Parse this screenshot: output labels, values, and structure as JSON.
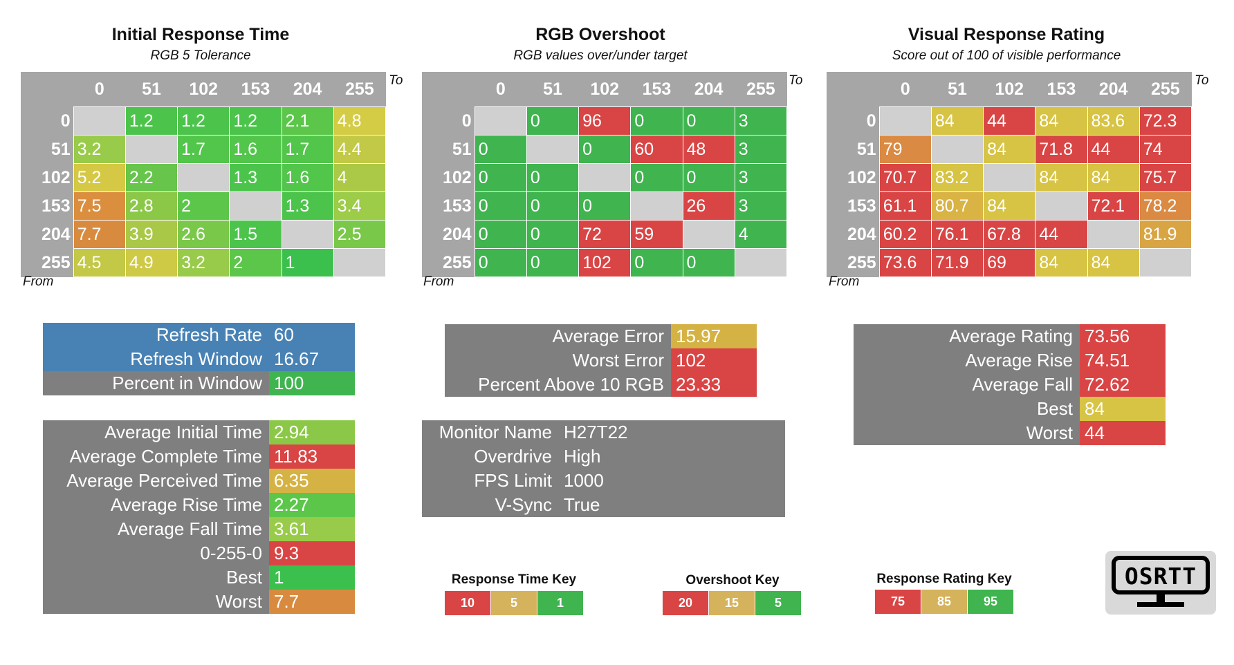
{
  "panels": {
    "initial": {
      "title": "Initial Response Time",
      "subtitle": "RGB 5 Tolerance"
    },
    "overshoot": {
      "title": "RGB Overshoot",
      "subtitle": "RGB values over/under target"
    },
    "visual": {
      "title": "Visual Response Rating",
      "subtitle": "Score out of 100 of visible performance"
    }
  },
  "axis": {
    "to": "To",
    "from": "From"
  },
  "levels": [
    "0",
    "51",
    "102",
    "153",
    "204",
    "255"
  ],
  "heatmaps": {
    "initial": [
      [
        "",
        "1.2",
        "1.2",
        "1.2",
        "2.1",
        "4.8"
      ],
      [
        "3.2",
        "",
        "1.7",
        "1.6",
        "1.7",
        "4.4"
      ],
      [
        "5.2",
        "2.2",
        "",
        "1.3",
        "1.6",
        "4"
      ],
      [
        "7.5",
        "2.8",
        "2",
        "",
        "1.3",
        "3.4"
      ],
      [
        "7.7",
        "3.9",
        "2.6",
        "1.5",
        "",
        "2.5"
      ],
      [
        "4.5",
        "4.9",
        "3.2",
        "2",
        "1",
        ""
      ]
    ],
    "overshoot": [
      [
        "",
        "0",
        "96",
        "0",
        "0",
        "3"
      ],
      [
        "0",
        "",
        "0",
        "60",
        "48",
        "3"
      ],
      [
        "0",
        "0",
        "",
        "0",
        "0",
        "3"
      ],
      [
        "0",
        "0",
        "0",
        "",
        "26",
        "3"
      ],
      [
        "0",
        "0",
        "72",
        "59",
        "",
        "4"
      ],
      [
        "0",
        "0",
        "102",
        "0",
        "0",
        ""
      ]
    ],
    "visual": [
      [
        "",
        "84",
        "44",
        "84",
        "83.6",
        "72.3"
      ],
      [
        "79",
        "",
        "84",
        "71.8",
        "44",
        "74"
      ],
      [
        "70.7",
        "83.2",
        "",
        "84",
        "84",
        "75.7"
      ],
      [
        "61.1",
        "80.7",
        "84",
        "",
        "72.1",
        "78.2"
      ],
      [
        "60.2",
        "76.1",
        "67.8",
        "44",
        "",
        "81.9"
      ],
      [
        "73.6",
        "71.9",
        "69",
        "84",
        "84",
        ""
      ]
    ]
  },
  "heatmap_colors": {
    "initial": [
      [
        "#d0d0d0",
        "#4cc44c",
        "#4cc44c",
        "#4cc44c",
        "#5cc64a",
        "#d4cc45"
      ],
      [
        "#99cb4a",
        "#d0d0d0",
        "#52c54b",
        "#52c54b",
        "#52c54b",
        "#c1c946"
      ],
      [
        "#d5c844",
        "#66c54a",
        "#d0d0d0",
        "#4cc44c",
        "#52c54b",
        "#acc847"
      ],
      [
        "#db8f3e",
        "#8cc848",
        "#5cc64a",
        "#d0d0d0",
        "#4cc44c",
        "#9ccc48"
      ],
      [
        "#d88b3f",
        "#aac847",
        "#7ac849",
        "#4cc44c",
        "#d0d0d0",
        "#7ac849"
      ],
      [
        "#c3c846",
        "#cfca45",
        "#99cb4a",
        "#5cc64a",
        "#3cc04d",
        "#d0d0d0"
      ]
    ],
    "overshoot": [
      [
        "#d0d0d0",
        "#3fb44f",
        "#d94545",
        "#3fb44f",
        "#3fb44f",
        "#3fb44f"
      ],
      [
        "#3fb44f",
        "#d0d0d0",
        "#3fb44f",
        "#d94545",
        "#d94545",
        "#3fb44f"
      ],
      [
        "#3fb44f",
        "#3fb44f",
        "#d0d0d0",
        "#3fb44f",
        "#3fb44f",
        "#3fb44f"
      ],
      [
        "#3fb44f",
        "#3fb44f",
        "#3fb44f",
        "#d0d0d0",
        "#d94545",
        "#3fb44f"
      ],
      [
        "#3fb44f",
        "#3fb44f",
        "#d94545",
        "#d94545",
        "#d0d0d0",
        "#3fb44f"
      ],
      [
        "#3fb44f",
        "#3fb44f",
        "#d94545",
        "#3fb44f",
        "#3fb44f",
        "#d0d0d0"
      ]
    ],
    "visual": [
      [
        "#d0d0d0",
        "#d7c344",
        "#d94545",
        "#d7c344",
        "#d7c344",
        "#d94545"
      ],
      [
        "#da8a42",
        "#d0d0d0",
        "#d7c344",
        "#d94545",
        "#d94545",
        "#d94545"
      ],
      [
        "#d94545",
        "#d7c344",
        "#d0d0d0",
        "#d7c344",
        "#d7c344",
        "#d94545"
      ],
      [
        "#d94545",
        "#d9b344",
        "#d7c344",
        "#d0d0d0",
        "#d94545",
        "#da8a42"
      ],
      [
        "#d94545",
        "#d94545",
        "#d94545",
        "#d94545",
        "#d0d0d0",
        "#d9a544"
      ],
      [
        "#d94545",
        "#d94545",
        "#d94545",
        "#d7c344",
        "#d7c344",
        "#d0d0d0"
      ]
    ]
  },
  "refresh_box": [
    {
      "label": "Refresh Rate",
      "value": "60",
      "label_color": "#4882b5",
      "value_color": "#4882b5"
    },
    {
      "label": "Refresh Window",
      "value": "16.67",
      "label_color": "#4882b5",
      "value_color": "#4882b5"
    },
    {
      "label": "Percent in Window",
      "value": "100",
      "label_color": "#7f7f7f",
      "value_color": "#3fb44f"
    }
  ],
  "time_box": [
    {
      "label": "Average Initial Time",
      "value": "2.94",
      "value_color": "#8cc848"
    },
    {
      "label": "Average Complete Time",
      "value": "11.83",
      "value_color": "#d94545"
    },
    {
      "label": "Average Perceived Time",
      "value": "6.35",
      "value_color": "#d5b244"
    },
    {
      "label": "Average Rise Time",
      "value": "2.27",
      "value_color": "#5cc64a"
    },
    {
      "label": "Average Fall Time",
      "value": "3.61",
      "value_color": "#99cb4a"
    },
    {
      "label": "0-255-0",
      "value": "9.3",
      "value_color": "#d94545"
    },
    {
      "label": "Best",
      "value": "1",
      "value_color": "#3cc04d"
    },
    {
      "label": "Worst",
      "value": "7.7",
      "value_color": "#d88b3f"
    }
  ],
  "error_box": [
    {
      "label": "Average Error",
      "value": "15.97",
      "value_color": "#d5b244"
    },
    {
      "label": "Worst Error",
      "value": "102",
      "value_color": "#d94545"
    },
    {
      "label": "Percent Above 10 RGB",
      "value": "23.33",
      "value_color": "#d94545"
    }
  ],
  "monitor_box": [
    {
      "label": "Monitor Name",
      "value": "H27T22"
    },
    {
      "label": "Overdrive",
      "value": "High"
    },
    {
      "label": "FPS Limit",
      "value": "1000"
    },
    {
      "label": "V-Sync",
      "value": "True"
    }
  ],
  "rating_box": [
    {
      "label": "Average Rating",
      "value": "73.56",
      "value_color": "#d94545"
    },
    {
      "label": "Average Rise",
      "value": "74.51",
      "value_color": "#d94545"
    },
    {
      "label": "Average Fall",
      "value": "72.62",
      "value_color": "#d94545"
    },
    {
      "label": "Best",
      "value": "84",
      "value_color": "#d7c344"
    },
    {
      "label": "Worst",
      "value": "44",
      "value_color": "#d94545"
    }
  ],
  "keys": {
    "response_time": {
      "title": "Response Time Key",
      "cells": [
        "10",
        "5",
        "1"
      ]
    },
    "overshoot": {
      "title": "Overshoot Key",
      "cells": [
        "20",
        "15",
        "5"
      ]
    },
    "response_rating": {
      "title": "Response Rating Key",
      "cells": [
        "75",
        "85",
        "95"
      ]
    },
    "colors": [
      "#d94545",
      "#d5b25c",
      "#3fb44f"
    ]
  },
  "logo": {
    "text": "OSRTT",
    "icon": "monitor-icon"
  },
  "colors": {
    "header_gray": "#a6a6a6",
    "box_gray": "#7f7f7f",
    "blue": "#4882b5",
    "diag_gray": "#d0d0d0"
  }
}
